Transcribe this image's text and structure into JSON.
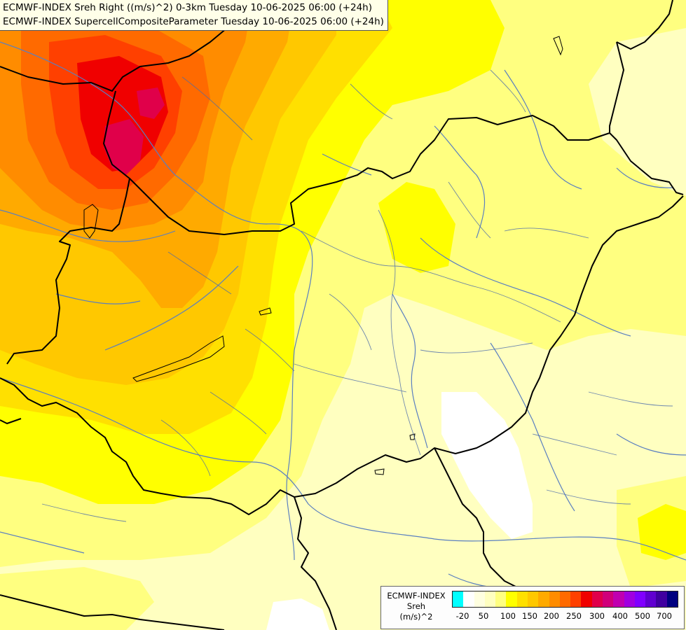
{
  "title": {
    "line1": "ECMWF-INDEX Sreh Right ((m/s)^2) 0-3km Tuesday 10-06-2025 06:00 (+24h)",
    "line2": "ECMWF-INDEX SupercellCompositeParameter Tuesday 10-06-2025 06:00 (+24h)"
  },
  "legend": {
    "title_lines": [
      "ECMWF-INDEX",
      "Sreh",
      "(m/s)^2"
    ],
    "colors": [
      "#00ffff",
      "#ffffff",
      "#ffffe0",
      "#ffffc0",
      "#ffff80",
      "#ffff00",
      "#ffe000",
      "#ffc800",
      "#ffaa00",
      "#ff8c00",
      "#ff6a00",
      "#ff4000",
      "#f00000",
      "#e0004a",
      "#d0007a",
      "#c000b0",
      "#a000e0",
      "#8000ff",
      "#6000d0",
      "#4000a0",
      "#000080"
    ],
    "ticks": [
      "-20",
      "50",
      "100",
      "150",
      "200",
      "250",
      "300",
      "400",
      "500",
      "700"
    ]
  },
  "colors": {
    "land_base": "#ffffc0",
    "border": "#000000",
    "river": "#5a7fc0"
  }
}
